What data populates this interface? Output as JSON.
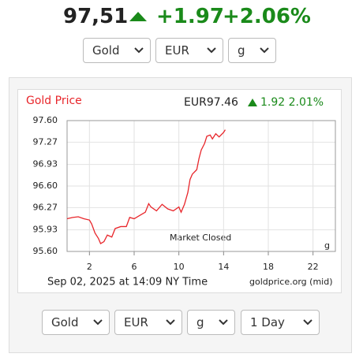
{
  "header": {
    "price": "97,51",
    "change": "+1.97",
    "change_pct": "+2.06%"
  },
  "top_selects": [
    "Gold",
    "EUR",
    "g"
  ],
  "chart_data": {
    "type": "line",
    "title": "Gold Price",
    "price_text": "EUR97.46",
    "change_text": "1.92 2.01%",
    "x": [
      0,
      0.5,
      1,
      1.5,
      2,
      2.2,
      2.5,
      2.8,
      3,
      3.3,
      3.6,
      4,
      4.3,
      4.8,
      5.3,
      5.6,
      6,
      6.5,
      7,
      7.3,
      7.5,
      8,
      8.5,
      9,
      9.5,
      10,
      10.2,
      10.5,
      10.8,
      11,
      11.2,
      11.6,
      11.8,
      12,
      12.3,
      12.5,
      12.8,
      13,
      13.3,
      13.6,
      14,
      14.15
    ],
    "series": [
      {
        "name": "Gold Price",
        "color": "#e8262b",
        "values": [
          96.1,
          96.12,
          96.13,
          96.1,
          96.08,
          96.02,
          95.88,
          95.8,
          95.72,
          95.75,
          95.85,
          95.82,
          95.95,
          95.98,
          95.98,
          96.12,
          96.1,
          96.15,
          96.2,
          96.33,
          96.28,
          96.22,
          96.32,
          96.25,
          96.22,
          96.28,
          96.2,
          96.32,
          96.5,
          96.7,
          96.78,
          96.85,
          97.02,
          97.15,
          97.25,
          97.36,
          97.38,
          97.32,
          97.4,
          97.35,
          97.42,
          97.46
        ]
      }
    ],
    "xlim": [
      0,
      24
    ],
    "xticks": [
      2,
      6,
      10,
      14,
      18,
      22
    ],
    "ylim": [
      95.6,
      97.6
    ],
    "yticks": [
      {
        "value": 97.6,
        "label": "97.60"
      },
      {
        "value": 97.27,
        "label": "97.27"
      },
      {
        "value": 96.93,
        "label": "96.93"
      },
      {
        "value": 96.6,
        "label": "96.60"
      },
      {
        "value": 96.27,
        "label": "96.27"
      },
      {
        "value": 95.93,
        "label": "95.93"
      },
      {
        "value": 95.6,
        "label": "95.60"
      }
    ],
    "grid": true,
    "annotation": "Market Closed",
    "unit_label": "g",
    "timestamp": "Sep 02, 2025 at 14:09 NY Time",
    "source": "goldprice.org (mid)"
  },
  "bottom_selects": [
    "Gold",
    "EUR",
    "g",
    "1 Day"
  ]
}
